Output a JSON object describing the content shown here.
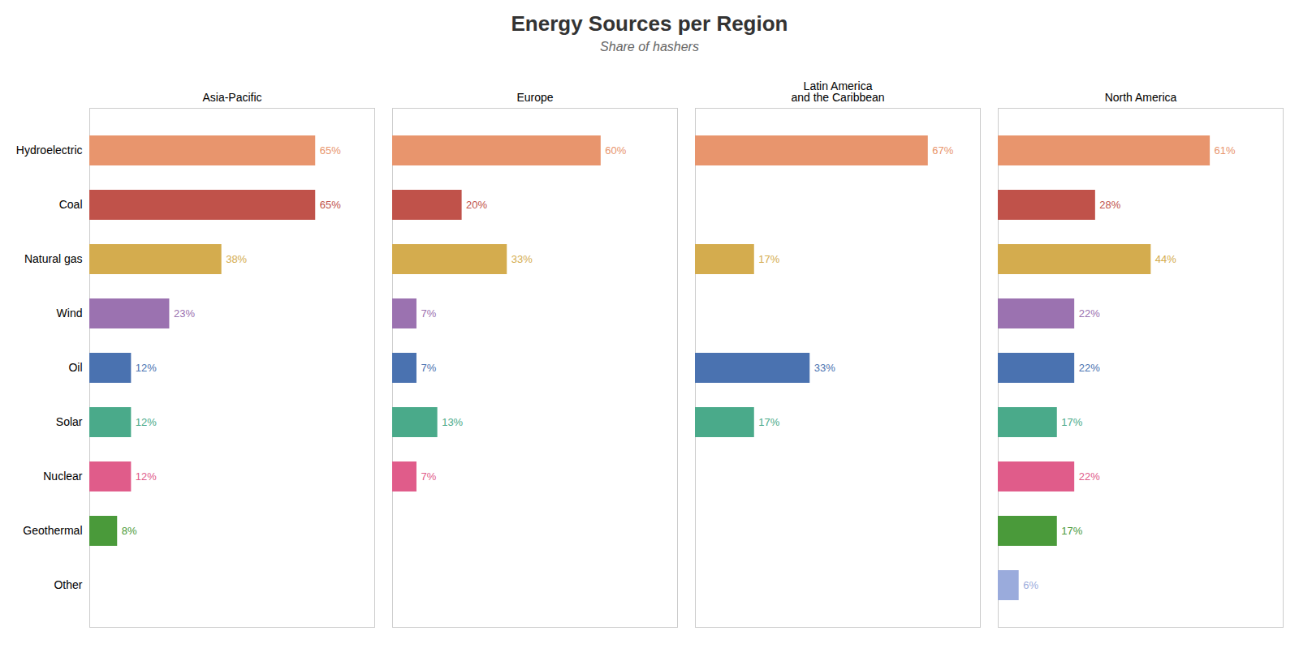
{
  "chart_data": {
    "type": "bar",
    "title": "Energy Sources per Region",
    "subtitle": "Share of hashers",
    "orientation": "horizontal",
    "categories": [
      "Hydroelectric",
      "Coal",
      "Natural gas",
      "Wind",
      "Oil",
      "Solar",
      "Nuclear",
      "Geothermal",
      "Other"
    ],
    "colors": [
      "#e8956d",
      "#c0524a",
      "#d4ac4e",
      "#9b72b0",
      "#4a72b0",
      "#4aaa8a",
      "#e05c8a",
      "#4a9a3a",
      "#9aabdc"
    ],
    "series": [
      {
        "name": "Asia-Pacific",
        "values": [
          65,
          65,
          38,
          23,
          12,
          12,
          12,
          8,
          0
        ],
        "value_labels": [
          "65%",
          "65%",
          "38%",
          "23%",
          "12%",
          "12%",
          "12%",
          "8%",
          null
        ]
      },
      {
        "name": "Europe",
        "values": [
          60,
          20,
          33,
          7,
          7,
          13,
          7,
          0,
          0
        ],
        "value_labels": [
          "60%",
          "20%",
          "33%",
          "7%",
          "7%",
          "13%",
          "7%",
          null,
          null
        ]
      },
      {
        "name": "Latin America\nand the Caribbean",
        "values": [
          67,
          0,
          17,
          0,
          33,
          17,
          0,
          0,
          0
        ],
        "value_labels": [
          "67%",
          null,
          "17%",
          null,
          "33%",
          "17%",
          null,
          null,
          null
        ]
      },
      {
        "name": "North America",
        "values": [
          61,
          28,
          44,
          22,
          22,
          17,
          22,
          17,
          6
        ],
        "value_labels": [
          "61%",
          "28%",
          "44%",
          "22%",
          "22%",
          "17%",
          "22%",
          "17%",
          "6%"
        ]
      }
    ],
    "xlim": [
      0,
      82
    ],
    "xticks": [],
    "data_labels": true,
    "tick_labels": "y",
    "grid": false
  }
}
